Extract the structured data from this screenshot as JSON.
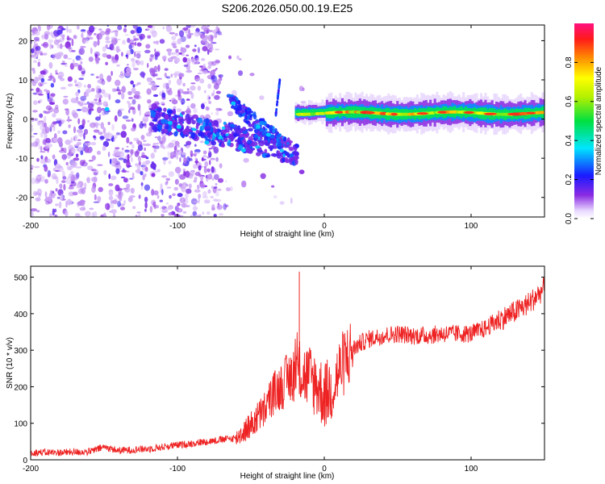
{
  "figure_title": "S206.2026.050.00.19.E25",
  "chart_data": [
    {
      "type": "heatmap",
      "title": "S206.2026.050.00.19.E25",
      "xlabel": "Height of straight line (km)",
      "ylabel": "Frequency (Hz)",
      "xlim": [
        -200,
        150
      ],
      "ylim": [
        -25,
        24
      ],
      "xticks": [
        -200,
        -100,
        0,
        100
      ],
      "yticks": [
        -20,
        -10,
        0,
        10,
        20
      ],
      "colorbar": {
        "label": "Normalized spectral amplitude",
        "range": [
          0.0,
          1.0
        ],
        "ticks": [
          0.0,
          0.2,
          0.4,
          0.6,
          0.8
        ],
        "tick_labels": [
          "0.0",
          "0.2",
          "0.4",
          "0.6",
          "0.8"
        ],
        "colormap": "rainbow (violet → blue → cyan → green → yellow → orange → red → magenta)"
      },
      "features": [
        {
          "name": "scattered low-amplitude noise",
          "x_range": [
            -200,
            -70
          ],
          "freq_range": [
            -25,
            24
          ],
          "amplitude": 0.1
        },
        {
          "name": "descending line feature",
          "x_range": [
            -115,
            -18
          ],
          "freq_range": [
            -12,
            5
          ],
          "amplitude": 0.25
        },
        {
          "name": "strong horizontal band",
          "x_range": [
            -20,
            150
          ],
          "freq_center": 1.5,
          "amplitude": 0.85
        }
      ]
    },
    {
      "type": "line",
      "xlabel": "Height of straight line (km)",
      "ylabel": "SNR (10 * v/v)",
      "xlim": [
        -200,
        150
      ],
      "ylim": [
        0,
        530
      ],
      "xticks": [
        -200,
        -100,
        0,
        100
      ],
      "yticks": [
        0,
        100,
        200,
        300,
        400,
        500
      ],
      "color": "#ee2222",
      "series": [
        {
          "name": "SNR",
          "x": [
            -200,
            -180,
            -160,
            -150,
            -140,
            -120,
            -100,
            -90,
            -80,
            -70,
            -60,
            -50,
            -40,
            -35,
            -30,
            -25,
            -20,
            -18,
            -15,
            -10,
            -5,
            0,
            5,
            10,
            15,
            20,
            25,
            30,
            40,
            50,
            60,
            70,
            80,
            90,
            100,
            110,
            115,
            120,
            130,
            140,
            150
          ],
          "values": [
            20,
            20,
            22,
            35,
            25,
            30,
            40,
            45,
            50,
            55,
            60,
            95,
            140,
            180,
            200,
            220,
            240,
            250,
            235,
            225,
            205,
            175,
            195,
            240,
            280,
            305,
            320,
            330,
            340,
            345,
            340,
            340,
            345,
            345,
            345,
            360,
            375,
            385,
            405,
            430,
            470
          ]
        }
      ],
      "annotations": [
        {
          "x": -17,
          "value": 515,
          "label": "isolated spike"
        }
      ]
    }
  ]
}
